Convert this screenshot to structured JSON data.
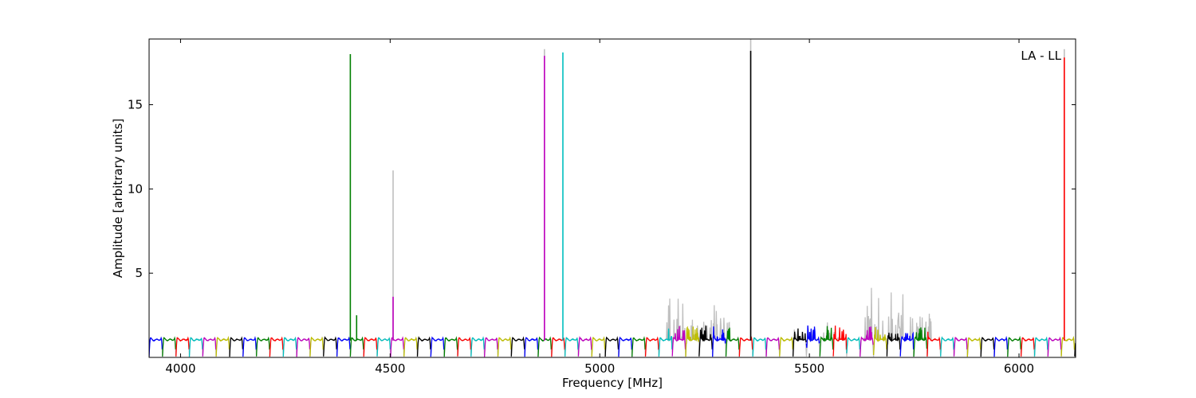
{
  "chart_data": {
    "type": "line",
    "title": "",
    "xlabel": "Frequency [MHz]",
    "ylabel": "Amplitude [arbitrary units]",
    "annotation": "LA - LL",
    "xlim": [
      3925,
      6135
    ],
    "ylim": [
      0,
      18.9
    ],
    "xticks": [
      4000,
      4500,
      5000,
      5500,
      6000
    ],
    "yticks": [
      5,
      10,
      15
    ],
    "grid": false,
    "legend": "none",
    "band_start": 3925,
    "band_width": 32,
    "band_colors": [
      "#0000ff",
      "#008000",
      "#ff0000",
      "#00bfbf",
      "#bf00bf",
      "#bfbf00",
      "#000000"
    ],
    "background_color": "#bfbfbf",
    "spikes": [
      {
        "x": 4405,
        "y": 18.0,
        "color": "#008000"
      },
      {
        "x": 4420,
        "y": 2.5,
        "color": "#008000"
      },
      {
        "x": 4507,
        "y": 11.1,
        "color": "#bfbfbf"
      },
      {
        "x": 4507,
        "y": 3.6,
        "color": "#bf00bf"
      },
      {
        "x": 4868,
        "y": 18.3,
        "color": "#bfbfbf"
      },
      {
        "x": 4868,
        "y": 17.9,
        "color": "#bf00bf"
      },
      {
        "x": 4912,
        "y": 18.1,
        "color": "#00bfbf"
      },
      {
        "x": 5360,
        "y": 18.9,
        "color": "#bfbfbf"
      },
      {
        "x": 5360,
        "y": 18.2,
        "color": "#000000"
      },
      {
        "x": 6108,
        "y": 18.3,
        "color": "#bfbfbf"
      },
      {
        "x": 6108,
        "y": 17.8,
        "color": "#ff0000"
      }
    ],
    "noisy_regions": [
      {
        "x0": 5160,
        "x1": 5310,
        "max": 3.8
      },
      {
        "x0": 5460,
        "x1": 5590,
        "max": 2.3
      },
      {
        "x0": 5630,
        "x1": 5790,
        "max": 4.4
      }
    ]
  }
}
